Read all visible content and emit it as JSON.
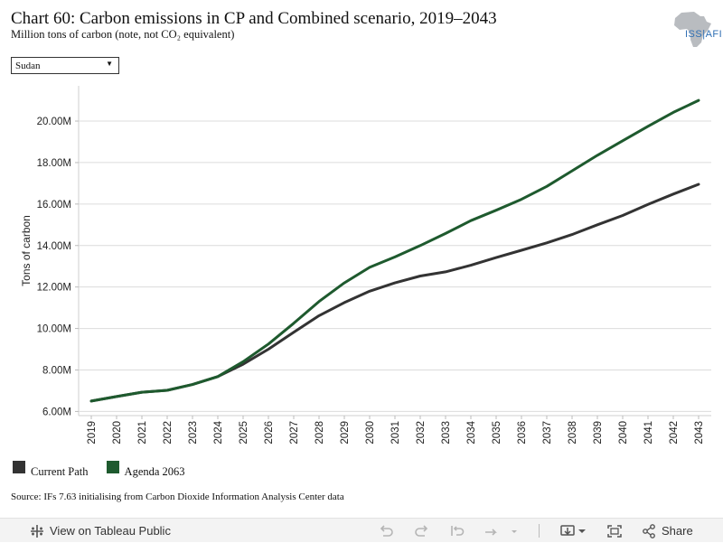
{
  "header": {
    "title": "Chart 60: Carbon emissions in CP and Combined scenario, 2019–2043",
    "subtitle": "Million tons of carbon (note, not CO₂ equivalent)"
  },
  "logo": {
    "text": "ISS|AFI",
    "icon": "africa-map-icon",
    "color": "#2f6fb4"
  },
  "filter": {
    "selected": "Sudan"
  },
  "legend": [
    {
      "label": "Current Path",
      "color": "#333333"
    },
    {
      "label": "Agenda 2063",
      "color": "#1e5a2e"
    }
  ],
  "source": "Source: IFs 7.63 initialising from Carbon Dioxide Information Analysis Center data",
  "toolbar": {
    "view_label": "View on Tableau Public",
    "share_label": "Share",
    "icons": [
      "tableau-logo-icon",
      "undo-icon",
      "redo-icon",
      "revert-icon",
      "refresh-icon",
      "download-icon",
      "fullscreen-icon",
      "share-icon"
    ]
  },
  "chart_data": {
    "type": "line",
    "title": "",
    "xlabel": "",
    "ylabel": "Tons of carbon",
    "x": [
      2019,
      2020,
      2021,
      2022,
      2023,
      2024,
      2025,
      2026,
      2027,
      2028,
      2029,
      2030,
      2031,
      2032,
      2033,
      2034,
      2035,
      2036,
      2037,
      2038,
      2039,
      2040,
      2041,
      2042,
      2043
    ],
    "y_ticks": [
      6000000,
      8000000,
      10000000,
      12000000,
      14000000,
      16000000,
      18000000,
      20000000
    ],
    "y_tick_labels": [
      "6.00M",
      "8.00M",
      "10.00M",
      "12.00M",
      "14.00M",
      "16.00M",
      "18.00M",
      "20.00M"
    ],
    "ylim": [
      5800000,
      21700000
    ],
    "grid": true,
    "legend_position": "bottom-left",
    "series": [
      {
        "name": "Current Path",
        "color": "#333333",
        "values": [
          6.5,
          6.72,
          6.93,
          7.02,
          7.3,
          7.68,
          8.28,
          9.0,
          9.82,
          10.62,
          11.25,
          11.8,
          12.2,
          12.53,
          12.73,
          13.05,
          13.42,
          13.77,
          14.13,
          14.53,
          15.0,
          15.45,
          15.98,
          16.48,
          16.95
        ]
      },
      {
        "name": "Agenda 2063",
        "color": "#1e5a2e",
        "values": [
          6.5,
          6.72,
          6.93,
          7.02,
          7.3,
          7.68,
          8.4,
          9.25,
          10.25,
          11.3,
          12.2,
          12.95,
          13.45,
          14.0,
          14.58,
          15.2,
          15.7,
          16.23,
          16.85,
          17.6,
          18.35,
          19.05,
          19.75,
          20.42,
          21.0
        ]
      }
    ],
    "value_unit": "millions"
  }
}
